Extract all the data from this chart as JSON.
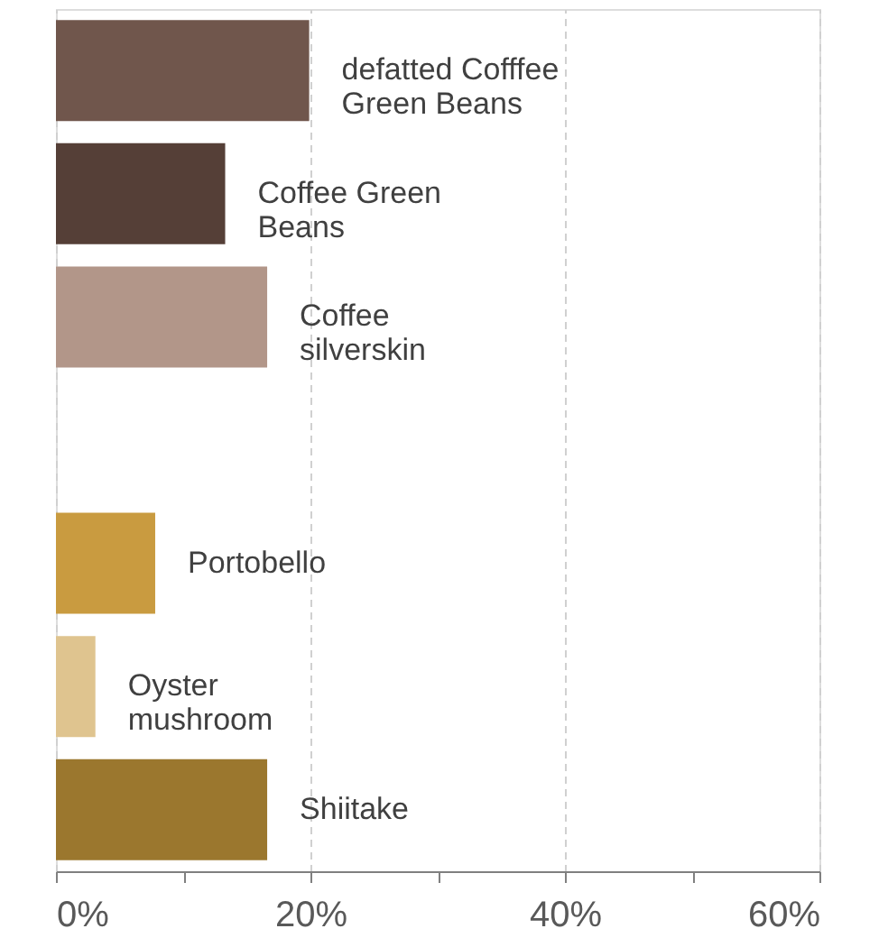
{
  "chart_data": {
    "type": "bar",
    "orientation": "horizontal",
    "categories": [
      "defatted Cofffee\nGreen Beans",
      "Coffee Green\nBeans",
      "Coffee\nsilverskin",
      null,
      "Portobello",
      "Oyster\nmushroom",
      "Shiitake"
    ],
    "values": [
      19.9,
      13.3,
      16.6,
      null,
      7.8,
      3.1,
      16.6
    ],
    "colors": [
      "#70564c",
      "#553f37",
      "#b29689",
      "#ffffff",
      "#c99b40",
      "#dfc48f",
      "#9b772e"
    ],
    "xlim": [
      0,
      60
    ],
    "xticks": [
      {
        "value": 0,
        "label": "0%"
      },
      {
        "value": 10,
        "label": null
      },
      {
        "value": 20,
        "label": "20%"
      },
      {
        "value": 30,
        "label": null
      },
      {
        "value": 40,
        "label": "40%"
      },
      {
        "value": 50,
        "label": null
      },
      {
        "value": 60,
        "label": "60%"
      }
    ],
    "grid": "x",
    "tick_labels": "x",
    "legend": false
  }
}
